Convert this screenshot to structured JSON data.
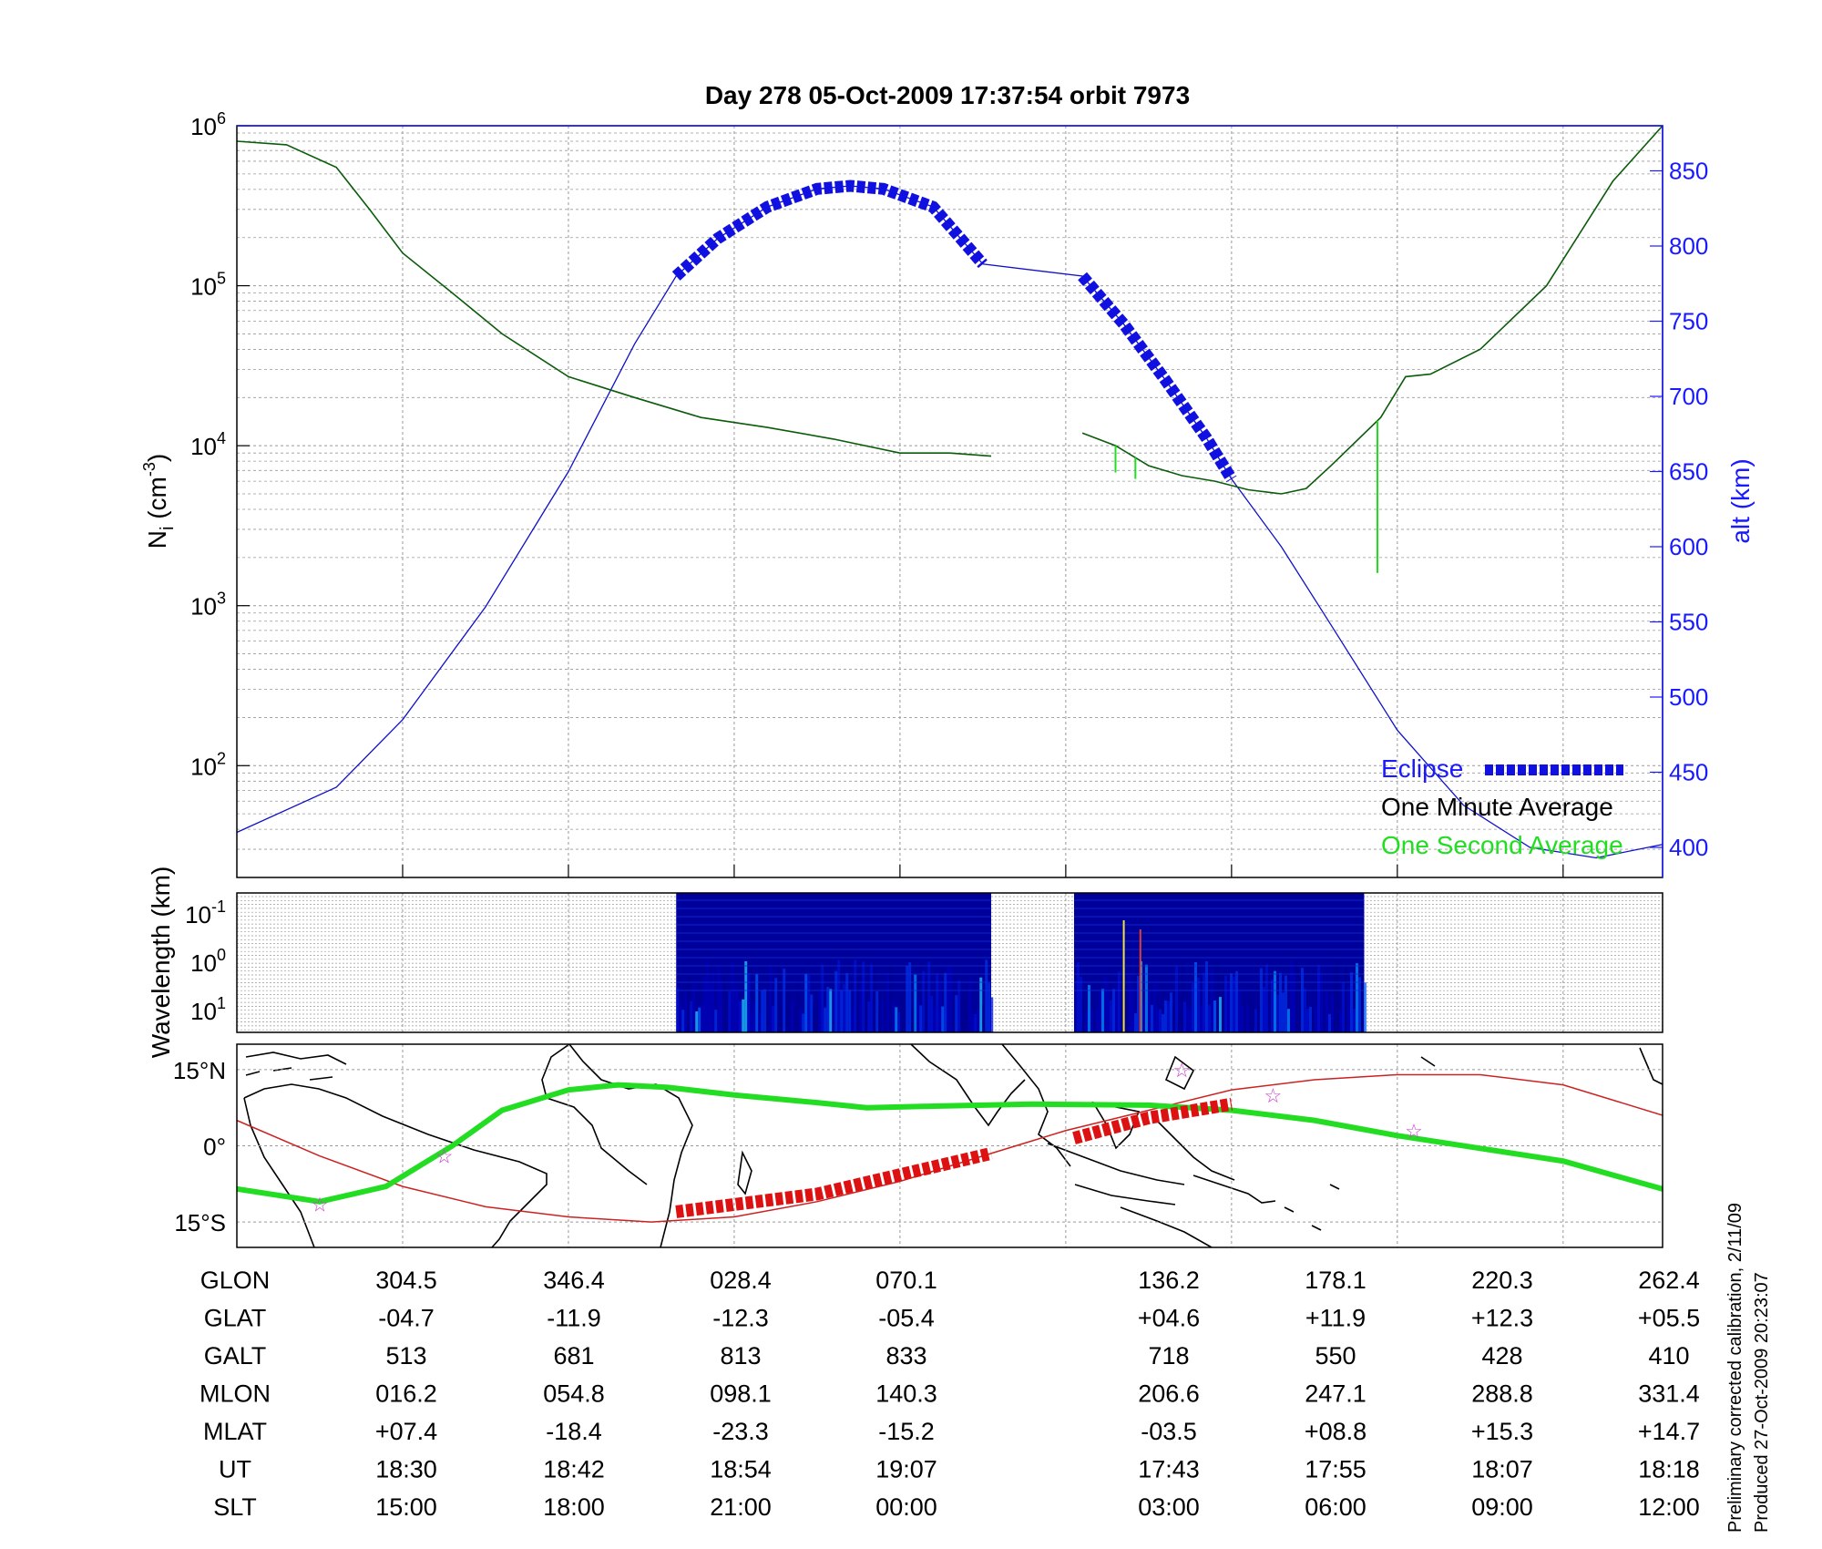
{
  "chart_data": [
    {
      "type": "line",
      "title": "Day 278  05-Oct-2009 17:37:54   orbit 7973",
      "ylabel": "N",
      "ylabel_sub": "i",
      "ylabel_unit": "(cm",
      "ylabel_exp": "-3",
      "ylabel_close": ")",
      "y_scale": "log",
      "ylim": [
        20,
        1000000
      ],
      "y_ticks": [
        {
          "base": "10",
          "exp": "2",
          "value": 100
        },
        {
          "base": "10",
          "exp": "3",
          "value": 1000
        },
        {
          "base": "10",
          "exp": "4",
          "value": 10000
        },
        {
          "base": "10",
          "exp": "5",
          "value": 100000
        },
        {
          "base": "10",
          "exp": "6",
          "value": 1000000
        }
      ],
      "y2label": "alt (km)",
      "y2lim": [
        380,
        880
      ],
      "y2_ticks": [
        "400",
        "450",
        "500",
        "550",
        "600",
        "650",
        "700",
        "750",
        "800",
        "850"
      ],
      "xlim": [
        0,
        8.6
      ],
      "grid": true,
      "legend_position": "bottom-right",
      "legend": [
        {
          "label": "Eclipse",
          "color": "#1a1aff"
        },
        {
          "label": "One Minute Average",
          "color": "#000000"
        },
        {
          "label": "One Second Average",
          "color": "#22dd22"
        }
      ],
      "series": [
        {
          "name": "Eclipse",
          "color": "#1010e0",
          "segments": [
            [
              [
                2.65,
                780
              ],
              [
                2.9,
                805
              ],
              [
                3.2,
                826
              ],
              [
                3.5,
                838
              ],
              [
                3.7,
                840
              ],
              [
                3.9,
                838
              ],
              [
                4.2,
                826
              ],
              [
                4.5,
                788
              ]
            ],
            [
              [
                5.1,
                780
              ],
              [
                5.35,
                748
              ],
              [
                5.6,
                711
              ],
              [
                5.85,
                672
              ],
              [
                6.0,
                645
              ]
            ]
          ]
        },
        {
          "name": "altitude",
          "color": "#1010c8",
          "points": [
            [
              0,
              410
            ],
            [
              0.6,
              440
            ],
            [
              1.0,
              485
            ],
            [
              1.5,
              560
            ],
            [
              2.0,
              650
            ],
            [
              2.4,
              735
            ],
            [
              2.65,
              780
            ],
            [
              2.9,
              805
            ],
            [
              3.2,
              826
            ],
            [
              3.5,
              838
            ],
            [
              3.7,
              840
            ],
            [
              3.9,
              838
            ],
            [
              4.2,
              826
            ],
            [
              4.5,
              788
            ],
            [
              5.1,
              780
            ],
            [
              5.35,
              748
            ],
            [
              5.6,
              711
            ],
            [
              5.85,
              672
            ],
            [
              6.0,
              645
            ],
            [
              6.3,
              600
            ],
            [
              6.6,
              548
            ],
            [
              7.0,
              478
            ],
            [
              7.4,
              428
            ],
            [
              7.8,
              400
            ],
            [
              8.2,
              393
            ],
            [
              8.6,
              402
            ]
          ]
        },
        {
          "name": "One Minute Average",
          "color": "#0a5c0a",
          "segments": [
            [
              [
                0,
                800000
              ],
              [
                0.3,
                760000
              ],
              [
                0.6,
                550000
              ],
              [
                0.8,
                300000
              ],
              [
                1.0,
                160000
              ],
              [
                1.3,
                90000
              ],
              [
                1.6,
                50000
              ],
              [
                2.0,
                27000
              ],
              [
                2.4,
                20000
              ],
              [
                2.8,
                15000
              ],
              [
                3.2,
                13000
              ],
              [
                3.6,
                11000
              ],
              [
                4.0,
                9000
              ],
              [
                4.3,
                9000
              ],
              [
                4.55,
                8600
              ]
            ],
            [
              [
                5.1,
                12000
              ],
              [
                5.3,
                10000
              ],
              [
                5.5,
                7500
              ],
              [
                5.7,
                6500
              ],
              [
                5.9,
                6000
              ],
              [
                6.1,
                5300
              ],
              [
                6.3,
                5000
              ],
              [
                6.45,
                5400
              ],
              [
                6.6,
                7500
              ],
              [
                6.9,
                15000
              ],
              [
                7.05,
                27000
              ],
              [
                7.2,
                28000
              ],
              [
                7.5,
                40000
              ],
              [
                7.9,
                100000
              ],
              [
                8.3,
                450000
              ],
              [
                8.6,
                1000000
              ]
            ]
          ]
        },
        {
          "name": "One Second Average",
          "color": "#22dd22",
          "spikes": [
            [
              5.3,
              6800
            ],
            [
              5.42,
              6200
            ],
            [
              6.88,
              1600
            ]
          ]
        }
      ]
    },
    {
      "type": "heatmap",
      "ylabel": "Wavelength (km)",
      "y_scale": "log",
      "y_ticks": [
        {
          "base": "10",
          "exp": "-1"
        },
        {
          "base": "10",
          "exp": "0"
        },
        {
          "base": "10",
          "exp": "1"
        }
      ],
      "xlim": [
        0,
        8.6
      ],
      "blocks": [
        [
          2.65,
          4.55
        ],
        [
          5.05,
          6.8
        ]
      ],
      "colormap": "jet"
    },
    {
      "type": "map",
      "ylim": [
        -20,
        20
      ],
      "y_ticks": [
        "15°N",
        "0°",
        "15°S"
      ],
      "orbit_color": "#cc2222",
      "field_line_color": "#22dd22",
      "eclipse_color": "#dd1111",
      "star_color": "#cc44cc"
    }
  ],
  "table": {
    "rows": [
      {
        "label": "GLON",
        "values": [
          "304.5",
          "346.4",
          "028.4",
          "070.1",
          "136.2",
          "178.1",
          "220.3",
          "262.4"
        ]
      },
      {
        "label": "GLAT",
        "values": [
          "-04.7",
          "-11.9",
          "-12.3",
          "-05.4",
          "+04.6",
          "+11.9",
          "+12.3",
          "+05.5"
        ]
      },
      {
        "label": "GALT",
        "values": [
          "513",
          "681",
          "813",
          "833",
          "718",
          "550",
          "428",
          "410"
        ]
      },
      {
        "label": "MLON",
        "values": [
          "016.2",
          "054.8",
          "098.1",
          "140.3",
          "206.6",
          "247.1",
          "288.8",
          "331.4"
        ]
      },
      {
        "label": "MLAT",
        "values": [
          "+07.4",
          "-18.4",
          "-23.3",
          "-15.2",
          "-03.5",
          "+08.8",
          "+15.3",
          "+14.7"
        ]
      },
      {
        "label": "UT",
        "values": [
          "18:30",
          "18:42",
          "18:54",
          "19:07",
          "17:43",
          "17:55",
          "18:07",
          "18:18"
        ]
      },
      {
        "label": "SLT",
        "values": [
          "15:00",
          "18:00",
          "21:00",
          "00:00",
          "03:00",
          "06:00",
          "09:00",
          "12:00"
        ]
      }
    ]
  },
  "footnote": {
    "line1": "Preliminary corrected calibration, 2/11/09",
    "line2": "Produced 27-Oct-2009 20:23:07"
  }
}
